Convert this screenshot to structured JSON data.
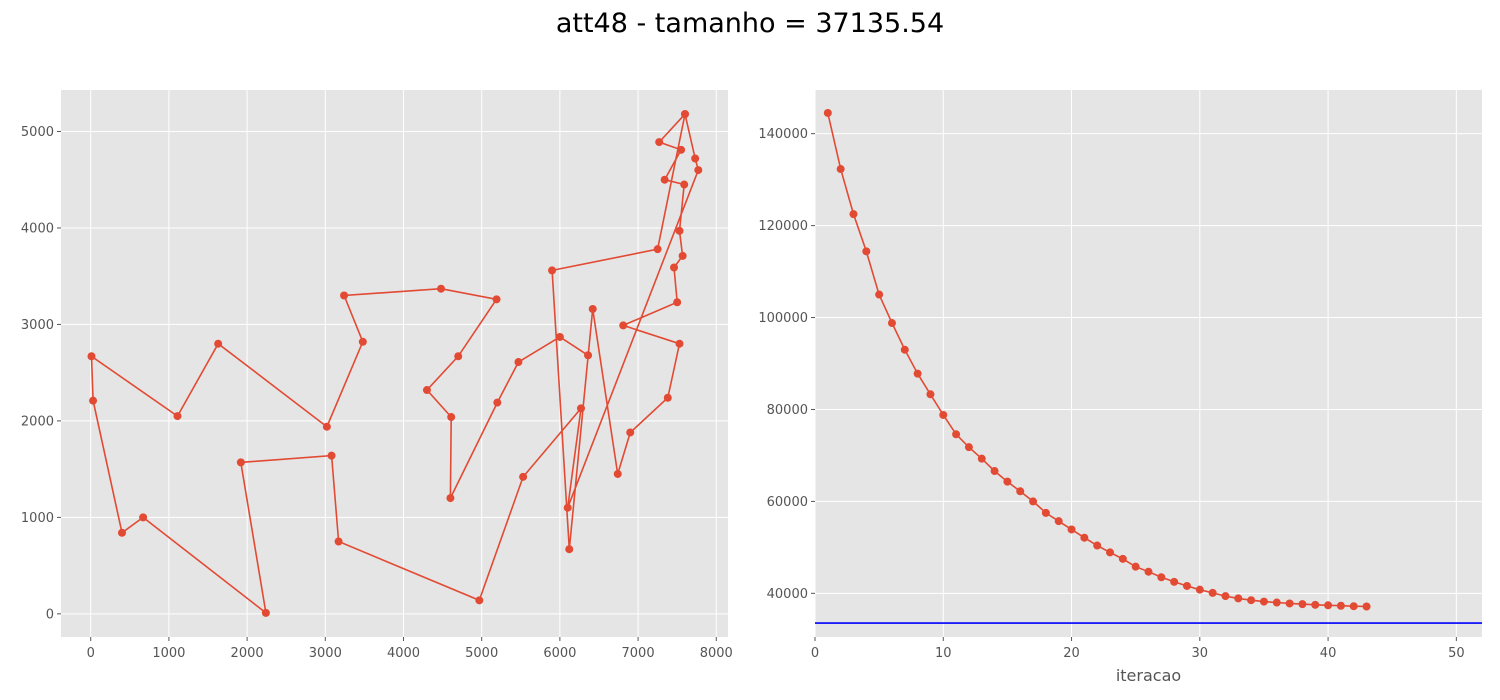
{
  "title": "att48 - tamanho = 37135.54",
  "colors": {
    "background": "#e5e5e5",
    "grid": "#ffffff",
    "series": "#e24a33",
    "reference": "#0000ff",
    "tick": "#555555"
  },
  "chart_data": [
    {
      "type": "line",
      "markers": true,
      "grid": true,
      "xlabel": "",
      "ylabel": "",
      "xlim": [
        -380,
        8150
      ],
      "ylim": [
        -240,
        5430
      ],
      "xticks": [
        0,
        1000,
        2000,
        3000,
        4000,
        5000,
        6000,
        7000,
        8000
      ],
      "yticks": [
        0,
        1000,
        2000,
        3000,
        4000,
        5000
      ],
      "series": [
        {
          "x": [
            7600,
            7270,
            7550,
            7340,
            7590,
            7530,
            7570,
            7460,
            7500,
            6810,
            7530,
            7380,
            6900,
            6740,
            6420,
            6120,
            5900,
            7250,
            7600,
            7730,
            7770,
            6100,
            6270,
            5530,
            4970,
            3170,
            3080,
            1920,
            2240,
            670,
            400,
            30,
            10,
            1110,
            1630,
            3020,
            3480,
            3240,
            4480,
            5190,
            4700,
            4300,
            4610,
            4600,
            5200,
            5470,
            6000,
            6360
          ],
          "y": [
            5180,
            4890,
            4810,
            4500,
            4450,
            3970,
            3710,
            3590,
            3230,
            2990,
            2800,
            2240,
            1880,
            1450,
            3160,
            670,
            3560,
            3780,
            5180,
            4720,
            4600,
            1100,
            2130,
            1420,
            140,
            750,
            1640,
            1570,
            10,
            1000,
            840,
            2210,
            2670,
            2050,
            2800,
            1940,
            2820,
            3300,
            3370,
            3260,
            2670,
            2320,
            2040,
            1200,
            2190,
            2610,
            2870,
            2680
          ]
        }
      ]
    },
    {
      "type": "line",
      "markers": true,
      "grid": true,
      "xlabel": "iteracao",
      "ylabel": "",
      "xlim": [
        0,
        52
      ],
      "ylim": [
        30500,
        149500
      ],
      "xticks": [
        0,
        10,
        20,
        30,
        40,
        50
      ],
      "yticks": [
        40000,
        60000,
        80000,
        100000,
        120000,
        140000
      ],
      "series": [
        {
          "x": [
            1,
            2,
            3,
            4,
            5,
            6,
            7,
            8,
            9,
            10,
            11,
            12,
            13,
            14,
            15,
            16,
            17,
            18,
            19,
            20,
            21,
            22,
            23,
            24,
            25,
            26,
            27,
            28,
            29,
            30,
            31,
            32,
            33,
            34,
            35,
            36,
            37,
            38,
            39,
            40,
            41,
            42,
            43
          ],
          "y": [
            144500,
            132300,
            122500,
            114400,
            105000,
            98800,
            93000,
            87800,
            83300,
            78800,
            74600,
            71800,
            69300,
            66600,
            64300,
            62200,
            60000,
            57500,
            55700,
            53900,
            52100,
            50400,
            48900,
            47500,
            45800,
            44700,
            43500,
            42500,
            41600,
            40800,
            40100,
            39400,
            38900,
            38500,
            38200,
            38000,
            37800,
            37650,
            37500,
            37400,
            37300,
            37200,
            37135.54
          ]
        }
      ],
      "reference_line": {
        "y": 33523
      }
    }
  ]
}
